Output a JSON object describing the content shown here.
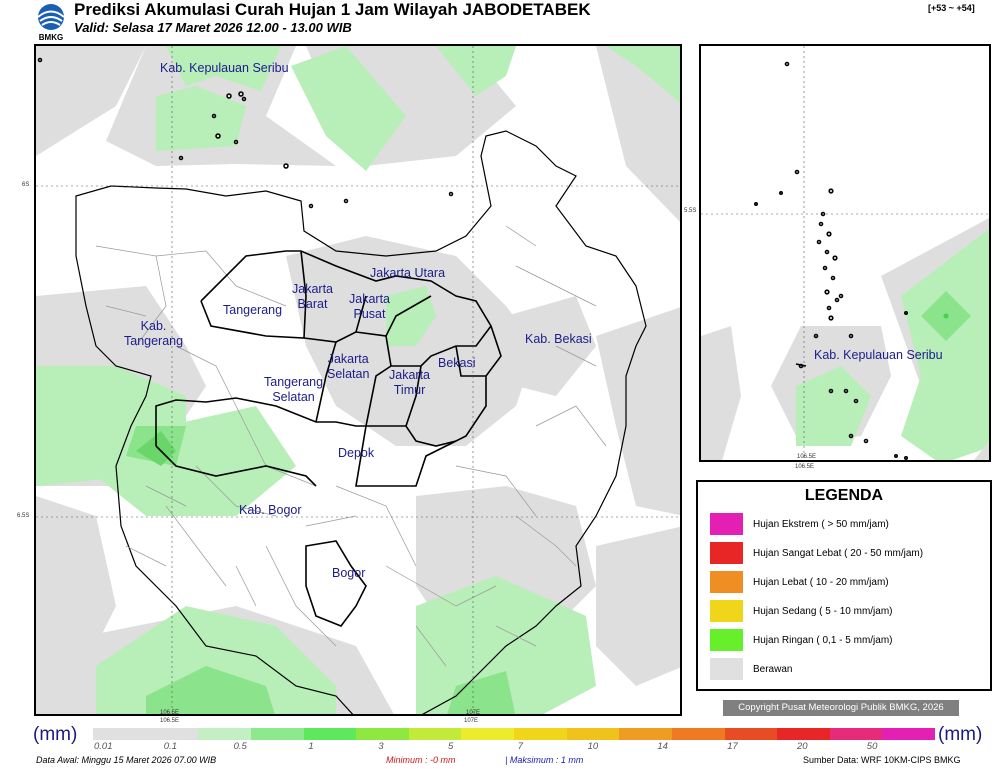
{
  "header": {
    "logo_text": "BMKG",
    "title": "Prediksi Akumulasi Curah Hujan 1 Jam Wilayah JABODETABEK",
    "subtitle": "Valid: Selasa 17 Maret 2026 12.00 - 13.00 WIB",
    "corner_label": "[+53 ~ +54]"
  },
  "map": {
    "labels": {
      "kab_kep_seribu": "Kab. Kepulauan Seribu",
      "jakarta_utara": "Jakarta Utara",
      "jakarta_barat_1": "Jakarta",
      "jakarta_barat_2": "Barat",
      "jakarta_pusat_1": "Jakarta",
      "jakarta_pusat_2": "Pusat",
      "tangerang": "Tangerang",
      "kab_tangerang_1": "Kab.",
      "kab_tangerang_2": "Tangerang",
      "kab_bekasi": "Kab. Bekasi",
      "jakarta_selatan_1": "Jakarta",
      "jakarta_selatan_2": "Selatan",
      "jakarta_timur_1": "Jakarta",
      "jakarta_timur_2": "Timur",
      "bekasi": "Bekasi",
      "tangerang_selatan_1": "Tangerang",
      "tangerang_selatan_2": "Selatan",
      "depok": "Depok",
      "kab_bogor": "Kab. Bogor",
      "bogor": "Bogor"
    },
    "coords": {
      "lat_6s": "6S",
      "lat_65s": "6.5S",
      "lon_1065e": "106.5E",
      "lon_107e": "107E"
    }
  },
  "inset": {
    "label": "Kab. Kepulauan Seribu",
    "lat_55s": "5.5S",
    "lon_1065e": "106.5E"
  },
  "legend": {
    "title": "LEGENDA",
    "items": [
      {
        "label": "Hujan Ekstrem ( > 50 mm/jam)",
        "color": "#e31fb4"
      },
      {
        "label": "Hujan Sangat Lebat ( 20 - 50 mm/jam)",
        "color": "#e82626"
      },
      {
        "label": "Hujan Lebat ( 10 - 20 mm/jam)",
        "color": "#ef8e22"
      },
      {
        "label": "Hujan Sedang ( 5 - 10 mm/jam)",
        "color": "#efd61a"
      },
      {
        "label": "Hujan Ringan ( 0,1 - 5 mm/jam)",
        "color": "#66ef2a"
      },
      {
        "label": "Berawan",
        "color": "#e0e0e0"
      }
    ]
  },
  "copyright": "Copyright Pusat Meteorologi Publik BMKG, 2026",
  "scale": {
    "unit_left": "(mm)",
    "unit_right": "(mm)",
    "colors": [
      "#e0e0e0",
      "#e0e0e0",
      "#c4efc4",
      "#8ee88e",
      "#5ee85e",
      "#8fe840",
      "#c2ea38",
      "#ecec2c",
      "#efd61a",
      "#efc21c",
      "#ef9c22",
      "#ef7a22",
      "#e84c24",
      "#e82626",
      "#e82a7a",
      "#e31fb4"
    ],
    "ticks": [
      "0.01",
      "0.1",
      "0.5",
      "1",
      "3",
      "5",
      "7",
      "10",
      "14",
      "17",
      "20",
      "50"
    ]
  },
  "footer": {
    "data_awal": "Data Awal: Minggu 15 Maret 2026 07.00 WIB",
    "minimum": "Minimum :    -0 mm",
    "maksimum": "| Maksimum :      1 mm",
    "sumber": "Sumber Data: WRF 10KM-CIPS BMKG"
  }
}
